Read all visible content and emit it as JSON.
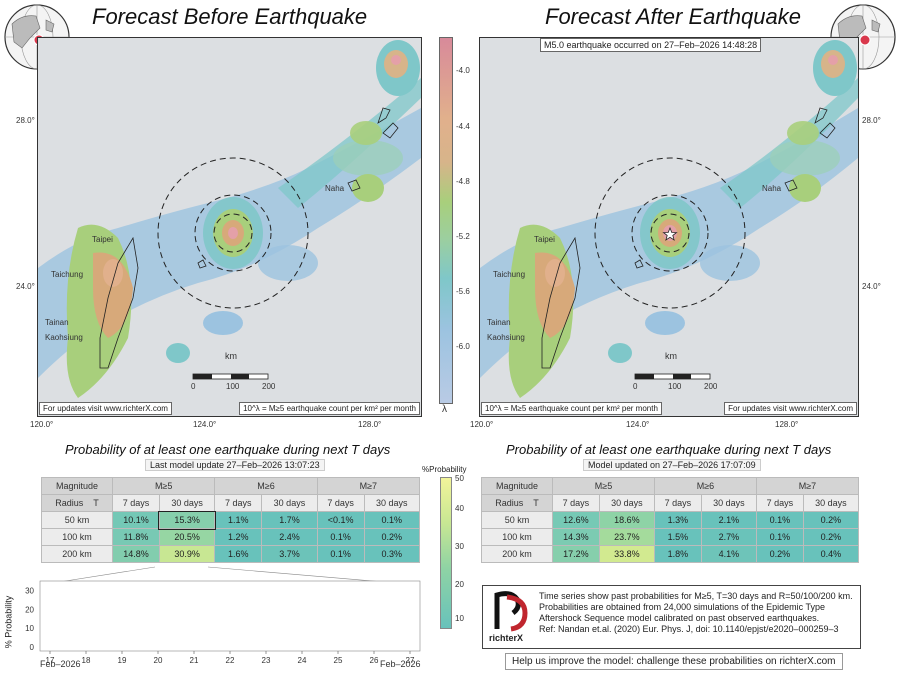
{
  "left": {
    "title": "Forecast Before Earthquake",
    "footer_left": "For updates visit www.richterX.com",
    "footer_right": "10^λ = M≥5 earthquake count per km² per month"
  },
  "right": {
    "title": "Forecast After Earthquake",
    "banner": "M5.0 earthquake occurred on 27–Feb–2026 14:48:28",
    "footer_left": "10^λ = M≥5 earthquake count per km² per month",
    "footer_right": "For updates visit www.richterX.com"
  },
  "map_labels": {
    "naha": "Naha",
    "taipei": "Taipei",
    "taichung": "Taichung",
    "tainan": "Tainan",
    "kaohsiung": "Kaohsiung",
    "km": "km",
    "scale": [
      "0",
      "100",
      "200"
    ],
    "lat_ticks": [
      "28.0°",
      "24.0°"
    ],
    "lon_ticks": [
      "120.0°",
      "124.0°",
      "128.0°"
    ]
  },
  "colorbar": {
    "ticks": [
      "-4.0",
      "-4.4",
      "-4.8",
      "-5.2",
      "-5.6",
      "-6.0"
    ],
    "label": "λ"
  },
  "prob_left": {
    "title": "Probability of at least one earthquake during next T days",
    "subtitle": "Last model update 27–Feb–2026 13:07:23",
    "col_magnitude": "Magnitude",
    "col_radius": "Radius",
    "col_T": "T",
    "mags": [
      "M≥5",
      "M≥6",
      "M≥7"
    ],
    "periods": [
      "7 days",
      "30 days",
      "7 days",
      "30 days",
      "7 days",
      "30 days"
    ],
    "rows": [
      {
        "radius": "50 km",
        "vals": [
          "10.1%",
          "15.3%",
          "1.1%",
          "1.7%",
          "<0.1%",
          "0.1%"
        ]
      },
      {
        "radius": "100 km",
        "vals": [
          "11.8%",
          "20.5%",
          "1.2%",
          "2.4%",
          "0.1%",
          "0.2%"
        ]
      },
      {
        "radius": "200 km",
        "vals": [
          "14.8%",
          "30.9%",
          "1.6%",
          "3.7%",
          "0.1%",
          "0.3%"
        ]
      }
    ]
  },
  "prob_right": {
    "title": "Probability of at least one earthquake during next T days",
    "subtitle": "Model updated on 27–Feb–2026 17:07:09",
    "col_magnitude": "Magnitude",
    "col_radius": "Radius",
    "col_T": "T",
    "mags": [
      "M≥5",
      "M≥6",
      "M≥7"
    ],
    "periods": [
      "7 days",
      "30 days",
      "7 days",
      "30 days",
      "7 days",
      "30 days"
    ],
    "rows": [
      {
        "radius": "50 km",
        "vals": [
          "12.6%",
          "18.6%",
          "1.3%",
          "2.1%",
          "0.1%",
          "0.2%"
        ]
      },
      {
        "radius": "100 km",
        "vals": [
          "14.3%",
          "23.7%",
          "1.5%",
          "2.7%",
          "0.1%",
          "0.2%"
        ]
      },
      {
        "radius": "200 km",
        "vals": [
          "17.2%",
          "33.8%",
          "1.8%",
          "4.1%",
          "0.2%",
          "0.4%"
        ]
      }
    ]
  },
  "prob_colorbar": {
    "title": "%Probability",
    "ticks": [
      "50",
      "40",
      "30",
      "20",
      "10"
    ]
  },
  "chart_data": {
    "type": "line",
    "ylabel": "% Probability",
    "ylim": [
      0,
      33
    ],
    "yticks": [
      "0",
      "10",
      "20",
      "30"
    ],
    "xticks": [
      "17",
      "18",
      "19",
      "20",
      "21",
      "22",
      "23",
      "24",
      "25",
      "26",
      "27"
    ],
    "xlabel_left": "Feb–2026",
    "xlabel_right": "Feb–2026",
    "series": [
      {
        "values": [
          19.2,
          19.3,
          19.4,
          19.3,
          19.5,
          19.6,
          19.7,
          19.6,
          19.8,
          20.0,
          20.1,
          20.0,
          20.2,
          20.3,
          20.4,
          20.3,
          20.5,
          20.4,
          20.6,
          20.5,
          20.7,
          20.8,
          20.8,
          20.9,
          21.0,
          21.0,
          21.1,
          21.0,
          21.2,
          21.2,
          21.3,
          21.2,
          21.4,
          21.3,
          21.3,
          21.4,
          21.5,
          21.4,
          21.5,
          21.6,
          21.6,
          21.7,
          21.6,
          21.8,
          21.8,
          22.0,
          23.5,
          24.0,
          30.4,
          30.9
        ]
      },
      {
        "values": [
          8.6,
          8.7,
          8.7,
          8.8,
          8.9,
          8.9,
          9.0,
          9.0,
          9.1,
          9.2,
          9.2,
          9.3,
          9.3,
          9.4,
          9.4,
          9.5,
          9.5,
          9.6,
          9.6,
          9.7,
          9.7,
          9.8,
          9.8,
          9.9,
          9.9,
          10.0,
          10.0,
          10.1,
          10.1,
          10.2,
          10.2,
          10.3,
          10.3,
          10.4,
          10.4,
          10.5,
          10.5,
          10.6,
          10.6,
          10.7,
          10.7,
          10.8,
          10.8,
          10.9,
          11.0,
          11.3,
          12.0,
          13.0,
          19.5,
          20.5
        ]
      },
      {
        "values": [
          5.2,
          5.3,
          5.3,
          5.4,
          5.4,
          5.5,
          5.5,
          5.6,
          5.6,
          5.7,
          5.7,
          5.8,
          5.8,
          5.9,
          5.9,
          6.0,
          6.0,
          6.1,
          6.1,
          6.2,
          6.2,
          6.3,
          6.3,
          6.4,
          6.4,
          6.5,
          6.5,
          6.6,
          6.6,
          6.7,
          6.7,
          6.8,
          6.8,
          6.9,
          6.9,
          7.0,
          7.0,
          7.1,
          7.1,
          7.2,
          7.2,
          7.3,
          7.3,
          7.4,
          7.5,
          7.7,
          8.5,
          9.5,
          14.5,
          15.3
        ]
      }
    ]
  },
  "info": {
    "logo_text": "richterX",
    "lines": [
      "Time series show past probabilities for M≥5, T=30 days and R=50/100/200 km.",
      "Probabilities are obtained from 24,000 simulations of the Epidemic Type",
      "Aftershock Sequence model calibrated on past observed earthquakes.",
      "Ref: Nandan et.al. (2020) Eur. Phys. J, doi: 10.1140/epjst/e2020–000259–3"
    ],
    "help": "Help us improve the model: challenge these probabilities on richterX.com"
  },
  "colors": {
    "low": "#5e8fc2",
    "mid": "#7fc7c9",
    "green": "#a8cf7c",
    "tan": "#d7a97a",
    "high": "#d88a9a",
    "table_low": "#68c2bb",
    "table_mid": "#8fd3a4",
    "table_high": "#c8e793"
  }
}
